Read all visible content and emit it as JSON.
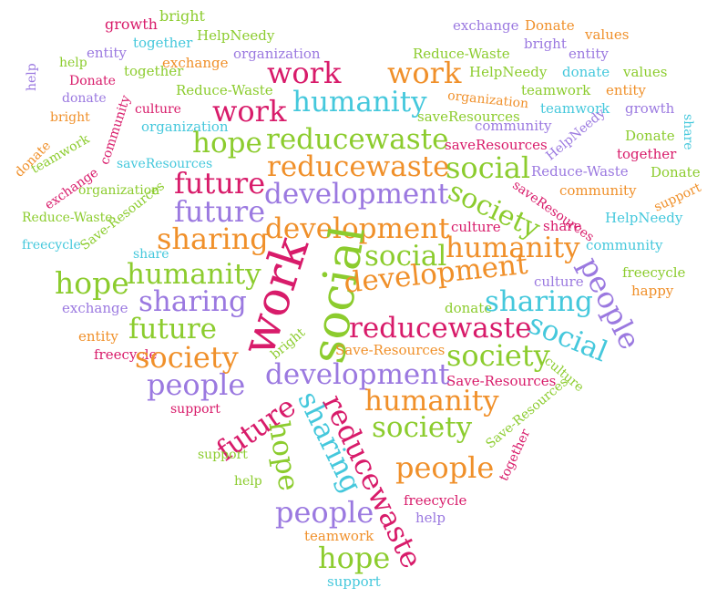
{
  "colors": {
    "pink": "#d81b6a",
    "orange": "#f0902a",
    "green": "#8ccc2e",
    "purple": "#9b79e0",
    "cyan": "#45c8dc"
  },
  "words": [
    {
      "text": "growth",
      "color": "pink"
    },
    {
      "text": "bright",
      "color": "green"
    },
    {
      "text": "together",
      "color": "cyan"
    },
    {
      "text": "HelpNeedy",
      "color": "green"
    },
    {
      "text": "entity",
      "color": "purple"
    },
    {
      "text": "help",
      "color": "green"
    },
    {
      "text": "exchange",
      "color": "orange"
    },
    {
      "text": "organization",
      "color": "purple"
    },
    {
      "text": "together",
      "color": "green"
    },
    {
      "text": "Donate",
      "color": "pink"
    },
    {
      "text": "donate",
      "color": "purple"
    },
    {
      "text": "help",
      "color": "purple"
    },
    {
      "text": "Reduce-Waste",
      "color": "green"
    },
    {
      "text": "bright",
      "color": "orange"
    },
    {
      "text": "culture",
      "color": "pink"
    },
    {
      "text": "organization",
      "color": "cyan"
    },
    {
      "text": "community",
      "color": "pink"
    },
    {
      "text": "teamwork",
      "color": "green"
    },
    {
      "text": "donate",
      "color": "orange"
    },
    {
      "text": "exchange",
      "color": "pink"
    },
    {
      "text": "saveResources",
      "color": "cyan"
    },
    {
      "text": "organization",
      "color": "green"
    },
    {
      "text": "Reduce-Waste",
      "color": "green"
    },
    {
      "text": "Save-Resources",
      "color": "green"
    },
    {
      "text": "freecycle",
      "color": "cyan"
    },
    {
      "text": "share",
      "color": "cyan"
    },
    {
      "text": "hope",
      "color": "green"
    },
    {
      "text": "exchange",
      "color": "purple"
    },
    {
      "text": "entity",
      "color": "orange"
    },
    {
      "text": "freecycle",
      "color": "pink"
    },
    {
      "text": "work",
      "color": "pink"
    },
    {
      "text": "work",
      "color": "pink"
    },
    {
      "text": "humanity",
      "color": "cyan"
    },
    {
      "text": "hope",
      "color": "green"
    },
    {
      "text": "reducewaste",
      "color": "green"
    },
    {
      "text": "reducewaste",
      "color": "orange"
    },
    {
      "text": "future",
      "color": "pink"
    },
    {
      "text": "development",
      "color": "purple"
    },
    {
      "text": "future",
      "color": "purple"
    },
    {
      "text": "sharing",
      "color": "orange"
    },
    {
      "text": "development",
      "color": "orange"
    },
    {
      "text": "humanity",
      "color": "green"
    },
    {
      "text": "sharing",
      "color": "purple"
    },
    {
      "text": "future",
      "color": "green"
    },
    {
      "text": "work",
      "color": "pink"
    },
    {
      "text": "social",
      "color": "green"
    },
    {
      "text": "society",
      "color": "orange"
    },
    {
      "text": "people",
      "color": "purple"
    },
    {
      "text": "support",
      "color": "pink"
    },
    {
      "text": "future",
      "color": "pink"
    },
    {
      "text": "development",
      "color": "purple"
    },
    {
      "text": "sharing",
      "color": "cyan"
    },
    {
      "text": "reducewaste",
      "color": "pink"
    },
    {
      "text": "hope",
      "color": "green"
    },
    {
      "text": "support",
      "color": "green"
    },
    {
      "text": "help",
      "color": "green"
    },
    {
      "text": "people",
      "color": "purple"
    },
    {
      "text": "teamwork",
      "color": "orange"
    },
    {
      "text": "hope",
      "color": "green"
    },
    {
      "text": "support",
      "color": "cyan"
    },
    {
      "text": "bright",
      "color": "green"
    },
    {
      "text": "freecycle",
      "color": "pink"
    },
    {
      "text": "help",
      "color": "purple"
    },
    {
      "text": "exchange",
      "color": "purple"
    },
    {
      "text": "Donate",
      "color": "orange"
    },
    {
      "text": "values",
      "color": "orange"
    },
    {
      "text": "bright",
      "color": "purple"
    },
    {
      "text": "entity",
      "color": "purple"
    },
    {
      "text": "work",
      "color": "orange"
    },
    {
      "text": "Reduce-Waste",
      "color": "green"
    },
    {
      "text": "HelpNeedy",
      "color": "green"
    },
    {
      "text": "donate",
      "color": "cyan"
    },
    {
      "text": "values",
      "color": "green"
    },
    {
      "text": "organization",
      "color": "orange"
    },
    {
      "text": "teamwork",
      "color": "green"
    },
    {
      "text": "entity",
      "color": "orange"
    },
    {
      "text": "saveResources",
      "color": "green"
    },
    {
      "text": "community",
      "color": "purple"
    },
    {
      "text": "teamwork",
      "color": "cyan"
    },
    {
      "text": "growth",
      "color": "purple"
    },
    {
      "text": "share",
      "color": "cyan"
    },
    {
      "text": "HelpNeedy",
      "color": "purple"
    },
    {
      "text": "Donate",
      "color": "green"
    },
    {
      "text": "saveResources",
      "color": "pink"
    },
    {
      "text": "together",
      "color": "pink"
    },
    {
      "text": "Reduce-Waste",
      "color": "purple"
    },
    {
      "text": "Donate",
      "color": "green"
    },
    {
      "text": "support",
      "color": "orange"
    },
    {
      "text": "saveResources",
      "color": "pink"
    },
    {
      "text": "community",
      "color": "orange"
    },
    {
      "text": "HelpNeedy",
      "color": "cyan"
    },
    {
      "text": "culture",
      "color": "pink"
    },
    {
      "text": "share",
      "color": "pink"
    },
    {
      "text": "community",
      "color": "cyan"
    },
    {
      "text": "freecycle",
      "color": "green"
    },
    {
      "text": "culture",
      "color": "purple"
    },
    {
      "text": "happy",
      "color": "orange"
    },
    {
      "text": "donate",
      "color": "green"
    },
    {
      "text": "bright",
      "color": "green"
    },
    {
      "text": "Save-Resources",
      "color": "orange"
    },
    {
      "text": "Save-Resources",
      "color": "pink"
    },
    {
      "text": "culture",
      "color": "green"
    },
    {
      "text": "Save-Resources",
      "color": "green"
    },
    {
      "text": "together",
      "color": "pink"
    },
    {
      "text": "freecycle",
      "color": "pink"
    },
    {
      "text": "help",
      "color": "purple"
    },
    {
      "text": "humanity",
      "color": "cyan"
    },
    {
      "text": "reducewaste",
      "color": "green"
    },
    {
      "text": "reducewaste",
      "color": "orange"
    },
    {
      "text": "social",
      "color": "green"
    },
    {
      "text": "development",
      "color": "purple"
    },
    {
      "text": "society",
      "color": "green"
    },
    {
      "text": "social",
      "color": "green"
    },
    {
      "text": "development",
      "color": "orange"
    },
    {
      "text": "humanity",
      "color": "orange"
    },
    {
      "text": "social",
      "color": "green"
    },
    {
      "text": "development",
      "color": "orange"
    },
    {
      "text": "people",
      "color": "purple"
    },
    {
      "text": "sharing",
      "color": "cyan"
    },
    {
      "text": "social",
      "color": "cyan"
    },
    {
      "text": "reducewaste",
      "color": "pink"
    },
    {
      "text": "society",
      "color": "green"
    },
    {
      "text": "humanity",
      "color": "orange"
    },
    {
      "text": "society",
      "color": "green"
    },
    {
      "text": "people",
      "color": "orange"
    },
    {
      "text": "sharing",
      "color": "cyan"
    },
    {
      "text": "humanity",
      "color": "green"
    }
  ]
}
